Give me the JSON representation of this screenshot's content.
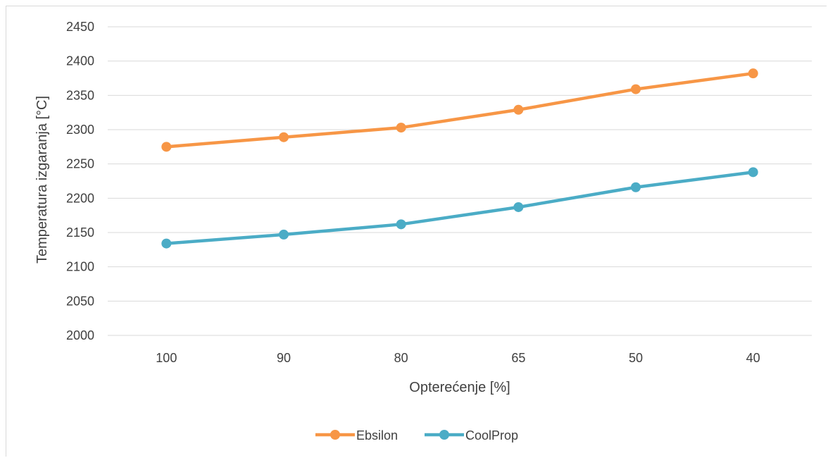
{
  "chart_data": {
    "type": "line",
    "title": "",
    "xlabel": "Opterećenje [%]",
    "ylabel": "Temperatura izgaranja [°C]",
    "categories": [
      "100",
      "90",
      "80",
      "65",
      "50",
      "40"
    ],
    "ylim": [
      2000,
      2450
    ],
    "yticks": [
      "2000",
      "2050",
      "2100",
      "2150",
      "2200",
      "2250",
      "2300",
      "2350",
      "2400",
      "2450"
    ],
    "grid": true,
    "legend_position": "bottom",
    "series": [
      {
        "name": "Ebsilon",
        "color": "#f79646",
        "values": [
          2275,
          2289,
          2303,
          2329,
          2359,
          2382
        ]
      },
      {
        "name": "CoolProp",
        "color": "#4bacc6",
        "values": [
          2134,
          2147,
          2162,
          2187,
          2216,
          2238
        ]
      }
    ]
  }
}
